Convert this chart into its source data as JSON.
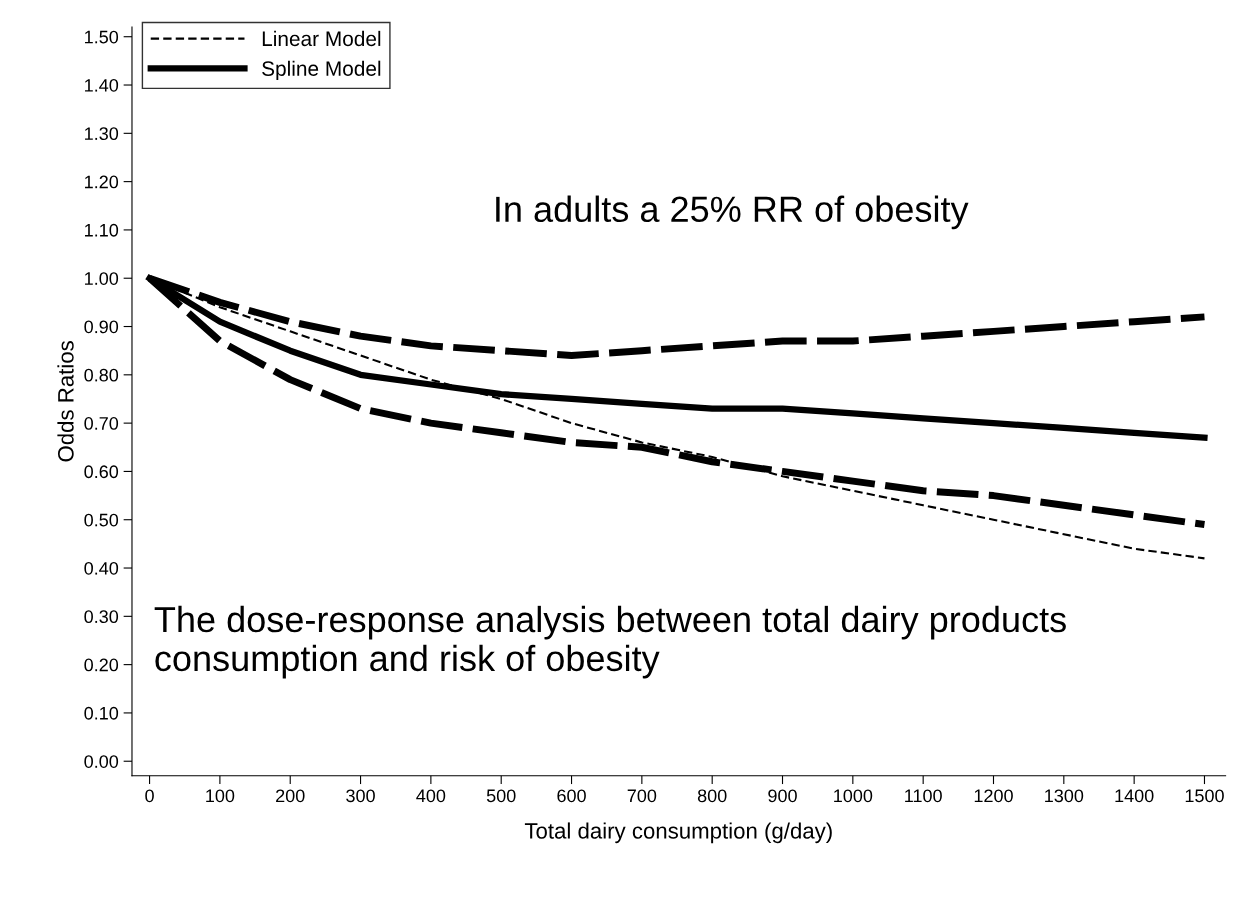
{
  "chart_data": {
    "type": "line",
    "xlabel": "Total dairy consumption (g/day)",
    "ylabel": "Odds Ratios",
    "x": [
      0,
      100,
      200,
      300,
      400,
      500,
      600,
      700,
      800,
      900,
      1000,
      1100,
      1200,
      1300,
      1400,
      1500
    ],
    "series": [
      {
        "name": "Linear Model",
        "color": "#000000",
        "line_style": "dashed",
        "values": [
          1.0,
          0.94,
          0.89,
          0.84,
          0.79,
          0.75,
          0.7,
          0.66,
          0.63,
          0.59,
          0.56,
          0.53,
          0.5,
          0.47,
          0.44,
          0.42
        ]
      },
      {
        "name": "Spline Model",
        "color": "#000000",
        "line_style": "solid",
        "values": [
          1.0,
          0.91,
          0.85,
          0.8,
          0.78,
          0.76,
          0.75,
          0.74,
          0.73,
          0.73,
          0.72,
          0.71,
          0.7,
          0.69,
          0.68,
          0.67
        ]
      },
      {
        "color": "#000000",
        "line_style": "dashed",
        "values": [
          1.0,
          0.95,
          0.91,
          0.88,
          0.86,
          0.85,
          0.84,
          0.85,
          0.86,
          0.87,
          0.87,
          0.88,
          0.89,
          0.9,
          0.91,
          0.92
        ]
      },
      {
        "color": "#000000",
        "line_style": "dashed",
        "values": [
          1.0,
          0.87,
          0.79,
          0.73,
          0.7,
          0.68,
          0.66,
          0.65,
          0.62,
          0.6,
          0.58,
          0.56,
          0.55,
          0.53,
          0.51,
          0.49
        ]
      }
    ],
    "xlim": [
      -25,
      1530
    ],
    "ylim": [
      -0.03,
      1.52
    ],
    "xticks": [
      0,
      100,
      200,
      300,
      400,
      500,
      600,
      700,
      800,
      900,
      1000,
      1100,
      1200,
      1300,
      1400,
      1500
    ],
    "yticks": [
      {
        "value": 0,
        "label": "0.00"
      },
      {
        "value": 0.1,
        "label": "0.10"
      },
      {
        "value": 0.2,
        "label": "0.20"
      },
      {
        "value": 0.3,
        "label": "0.30"
      },
      {
        "value": 0.4,
        "label": "0.40"
      },
      {
        "value": 0.5,
        "label": "0.50"
      },
      {
        "value": 0.6,
        "label": "0.60"
      },
      {
        "value": 0.7,
        "label": "0.70"
      },
      {
        "value": 0.8,
        "label": "0.80"
      },
      {
        "value": 0.9,
        "label": "0.90"
      },
      {
        "value": 1.0,
        "label": "1.00"
      },
      {
        "value": 1.1,
        "label": "1.10"
      },
      {
        "value": 1.2,
        "label": "1.20"
      },
      {
        "value": 1.3,
        "label": "1.30"
      },
      {
        "value": 1.4,
        "label": "1.40"
      },
      {
        "value": 1.5,
        "label": "1.50"
      }
    ],
    "annotations": [
      "In adults a 25% RR of obesity",
      "The dose-response analysis between total dairy products consumption and risk of obesity"
    ],
    "legend": "top left",
    "grid": false,
    "marker": "none"
  }
}
